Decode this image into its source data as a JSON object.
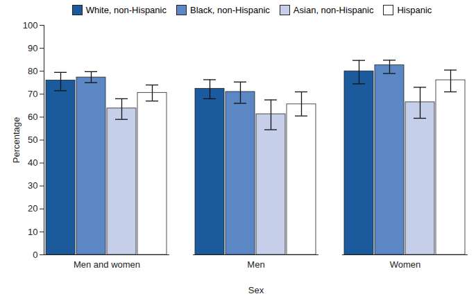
{
  "chart_data": {
    "type": "bar",
    "x_label": "Sex",
    "y_label": "Percentage",
    "categories": [
      "Men and women",
      "Men",
      "Women"
    ],
    "series": [
      {
        "name": "White, non-Hispanic",
        "color": "#1c5a9e",
        "values": [
          76.0,
          72.4,
          80.0
        ],
        "lower": [
          71.5,
          68.0,
          74.5
        ],
        "upper": [
          79.5,
          76.3,
          84.7
        ]
      },
      {
        "name": "Black, non-Hispanic",
        "color": "#5b87c5",
        "values": [
          77.3,
          71.0,
          82.6
        ],
        "lower": [
          75.0,
          66.0,
          79.0
        ],
        "upper": [
          79.8,
          75.3,
          84.8
        ]
      },
      {
        "name": "Asian, non-Hispanic",
        "color": "#c5cfea",
        "values": [
          63.8,
          61.3,
          66.5
        ],
        "lower": [
          59.0,
          54.5,
          59.5
        ],
        "upper": [
          68.0,
          67.5,
          73.0
        ]
      },
      {
        "name": "Hispanic",
        "color": "#ffffff",
        "values": [
          70.6,
          65.6,
          76.1
        ],
        "lower": [
          67.0,
          60.5,
          71.0
        ],
        "upper": [
          74.0,
          71.0,
          80.5
        ]
      }
    ],
    "ylim": [
      0,
      100
    ],
    "yticks": [
      0,
      10,
      20,
      30,
      40,
      50,
      60,
      70,
      80,
      90,
      100
    ],
    "grid": false,
    "legend": "top"
  }
}
